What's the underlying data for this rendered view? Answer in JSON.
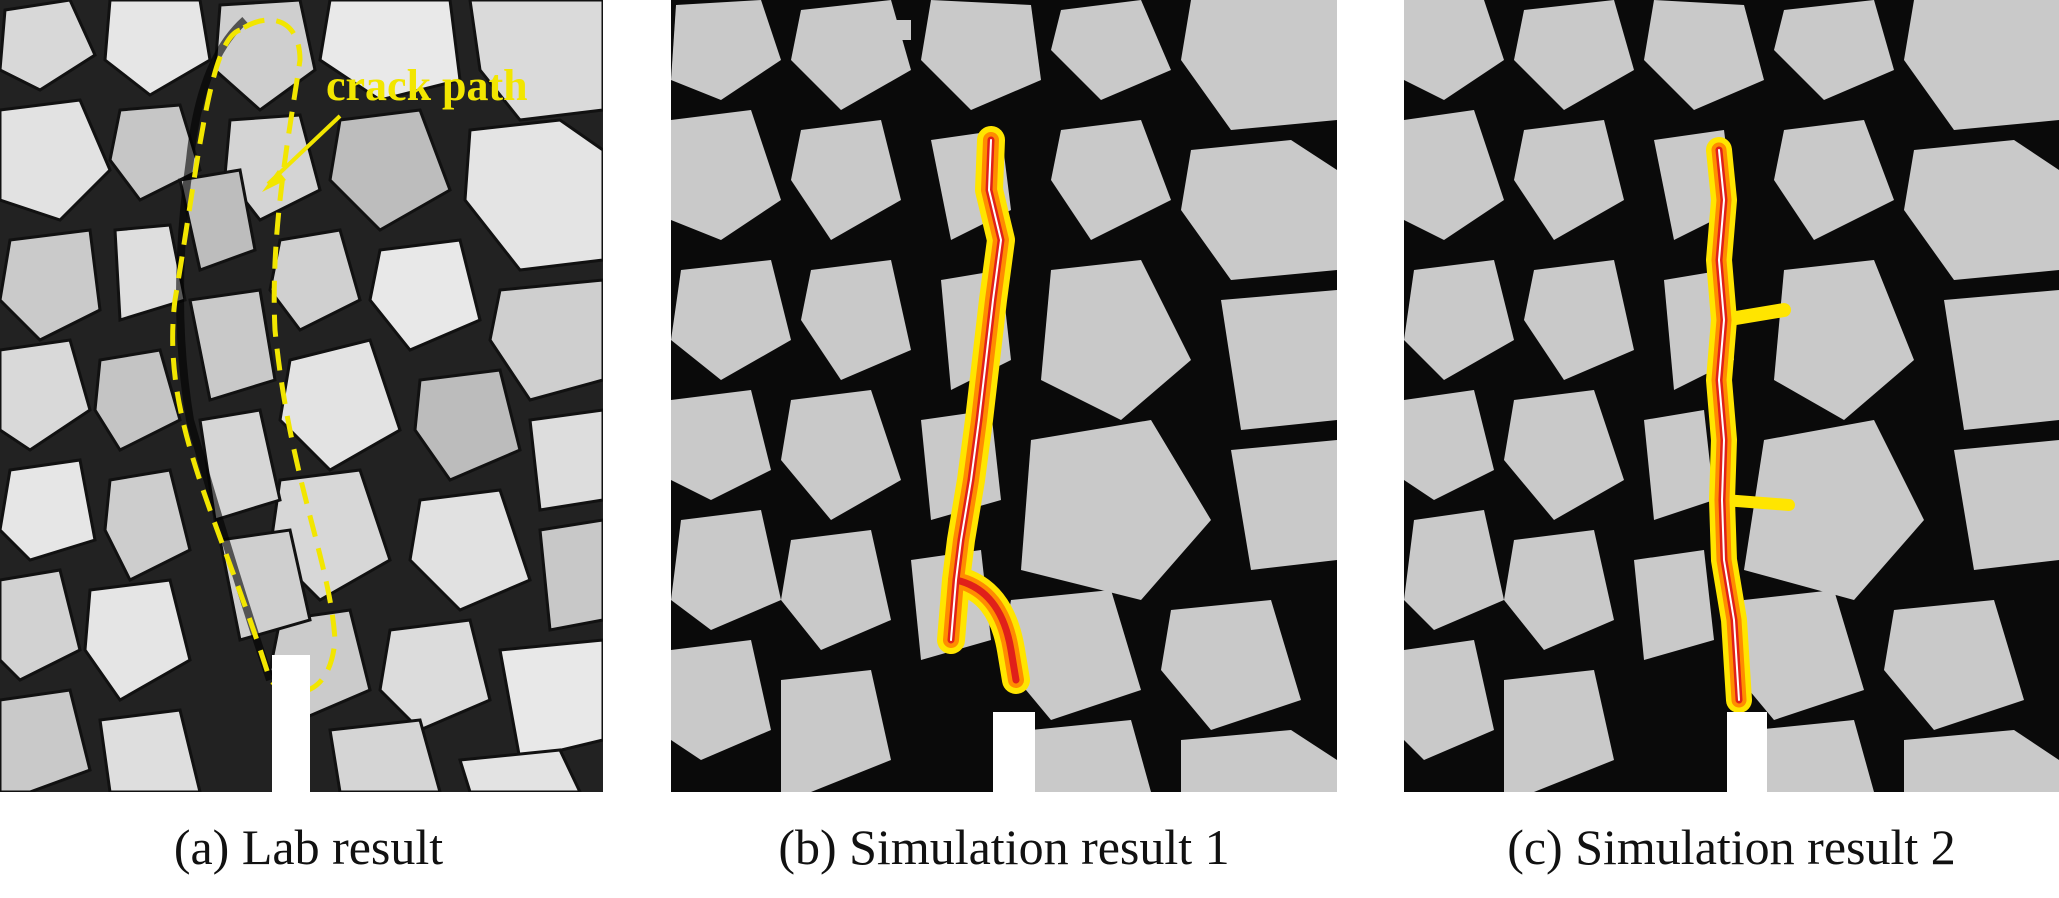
{
  "panels": [
    {
      "caption": "(a) Lab result",
      "annotation": "crack path"
    },
    {
      "caption": "(b) Simulation result 1"
    },
    {
      "caption": "(c) Simulation result 2"
    }
  ],
  "colors": {
    "annotation": "#f2e600",
    "crack_core": "#ffffff",
    "crack_inner": "#e0201a",
    "crack_mid": "#ff8c00",
    "crack_outer": "#ffe500",
    "aggregate_sim": "#c9c9c9",
    "matrix_sim": "#0a0a0a"
  },
  "icons": [
    "crack-path-arrow",
    "notch"
  ]
}
